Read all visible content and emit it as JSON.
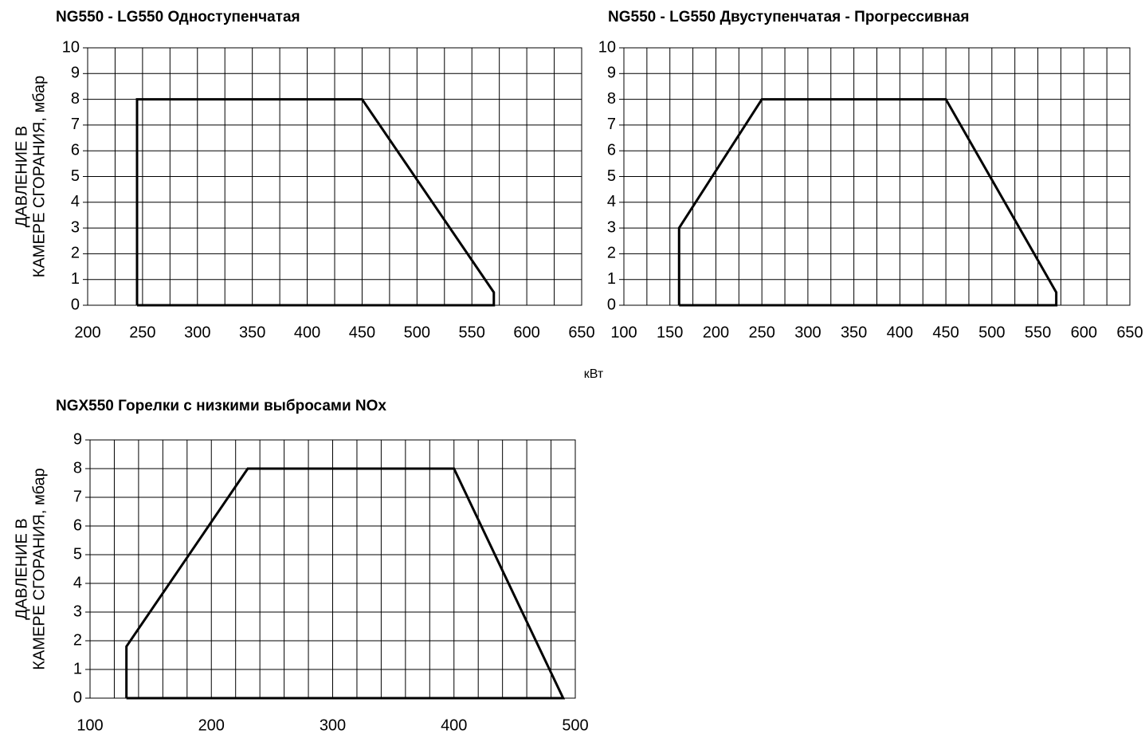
{
  "chart_data": [
    {
      "type": "line",
      "title": "NG550 - LG550   Одноступенчатая",
      "ylabel": [
        "ДАВЛЕНИЕ В",
        "КАМЕРЕ СГОРАНИЯ, мбар"
      ],
      "xlim": [
        200,
        650
      ],
      "xticks": [
        200,
        250,
        300,
        350,
        400,
        450,
        500,
        550,
        600,
        650
      ],
      "ylim": [
        0,
        10
      ],
      "yticks": [
        0,
        1,
        2,
        3,
        4,
        5,
        6,
        7,
        8,
        9,
        10
      ],
      "grid": true,
      "grid_subdivisions": 2,
      "series": [
        {
          "color": "#000000",
          "x": [
            245,
            245,
            450,
            570,
            570,
            245
          ],
          "values": [
            0,
            8,
            8,
            0.5,
            0,
            0
          ]
        }
      ]
    },
    {
      "type": "line",
      "title": "NG550 - LG550   Двуступенчатая - Прогрессивная",
      "xlabel": "кВт",
      "xlim": [
        100,
        650
      ],
      "xticks": [
        100,
        150,
        200,
        250,
        300,
        350,
        400,
        450,
        500,
        550,
        600,
        650
      ],
      "ylim": [
        0,
        10
      ],
      "yticks": [
        0,
        1,
        2,
        3,
        4,
        5,
        6,
        7,
        8,
        9,
        10
      ],
      "grid": true,
      "grid_subdivisions": 2,
      "series": [
        {
          "color": "#000000",
          "x": [
            160,
            160,
            250,
            450,
            570,
            570,
            160
          ],
          "values": [
            0,
            3,
            8,
            8,
            0.5,
            0,
            0
          ]
        }
      ]
    },
    {
      "type": "line",
      "title": "NGX550  Горелки с низкими выбросами NOx",
      "ylabel": [
        "ДАВЛЕНИЕ В",
        "КАМЕРЕ СГОРАНИЯ, мбар"
      ],
      "xlim": [
        100,
        500
      ],
      "xticks": [
        100,
        200,
        300,
        400,
        500
      ],
      "ylim": [
        0,
        9
      ],
      "yticks": [
        0,
        1,
        2,
        3,
        4,
        5,
        6,
        7,
        8,
        9
      ],
      "grid": true,
      "grid_subdivisions": 5,
      "series": [
        {
          "color": "#000000",
          "x": [
            130,
            130,
            230,
            400,
            490,
            130
          ],
          "values": [
            0,
            1.8,
            8,
            8,
            0,
            0
          ]
        }
      ]
    }
  ]
}
